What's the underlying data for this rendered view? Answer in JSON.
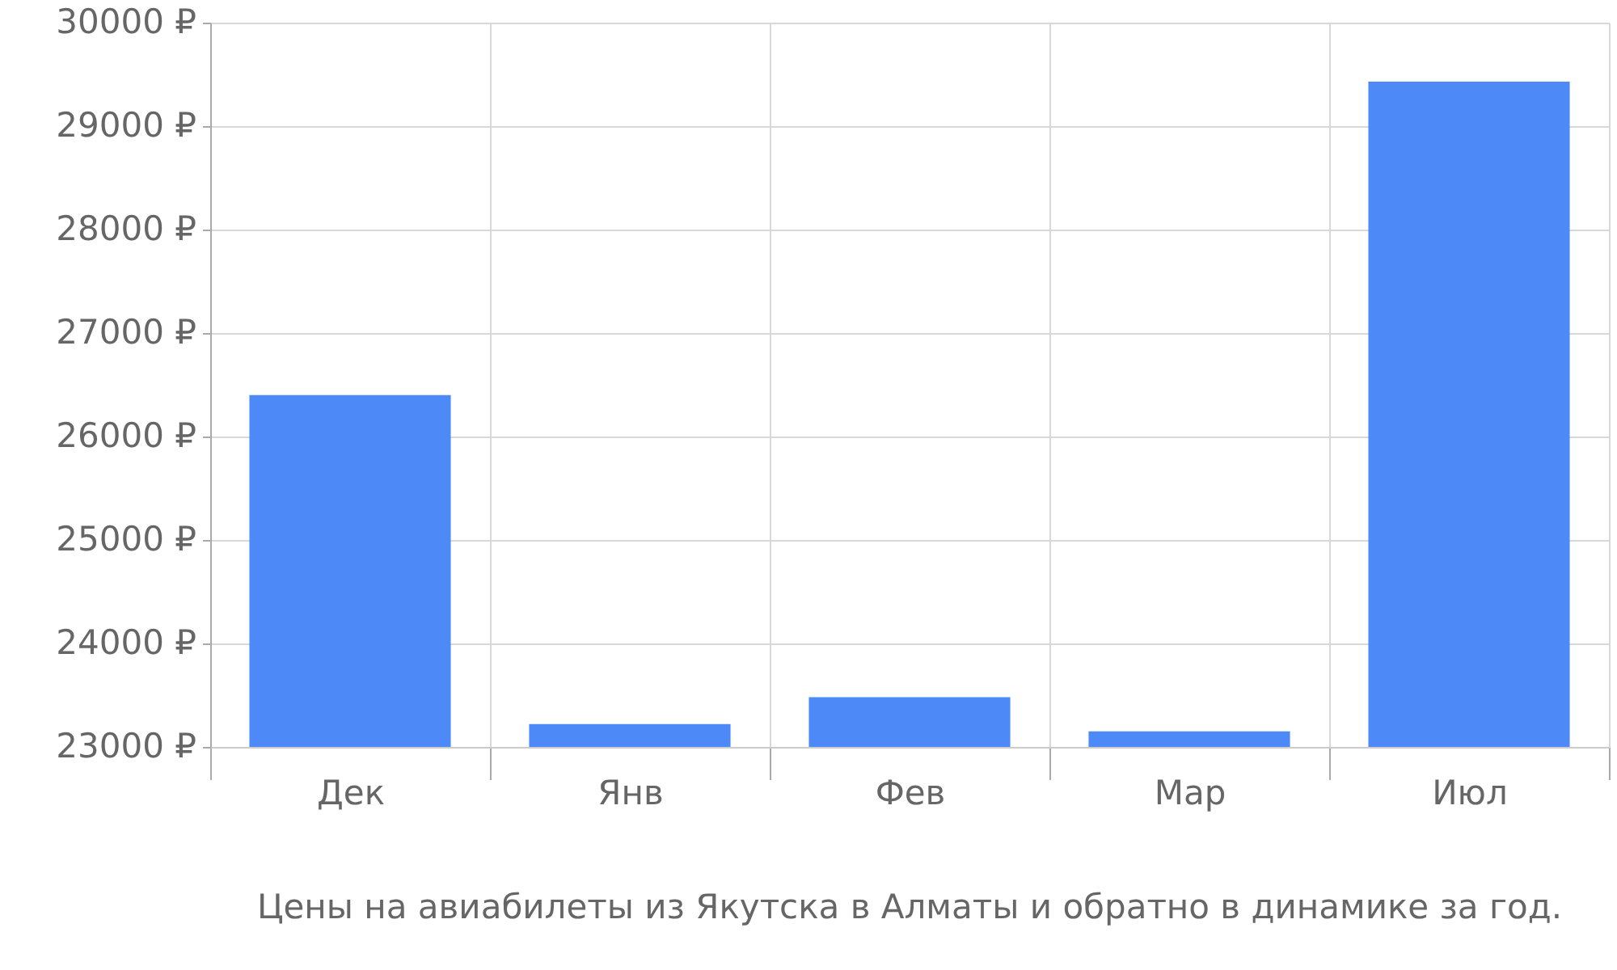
{
  "chart_data": {
    "type": "bar",
    "categories": [
      "Дек",
      "Янв",
      "Фев",
      "Мар",
      "Июл"
    ],
    "values": [
      26400,
      23220,
      23480,
      23150,
      29430
    ],
    "color": "#4d8af7",
    "ylim": [
      23000,
      30000
    ],
    "yticks": [
      {
        "value": 23000,
        "label": "23000 ₽"
      },
      {
        "value": 24000,
        "label": "24000 ₽"
      },
      {
        "value": 25000,
        "label": "25000 ₽"
      },
      {
        "value": 26000,
        "label": "26000 ₽"
      },
      {
        "value": 27000,
        "label": "27000 ₽"
      },
      {
        "value": 28000,
        "label": "28000 ₽"
      },
      {
        "value": 29000,
        "label": "29000 ₽"
      },
      {
        "value": 30000,
        "label": "30000 ₽"
      }
    ],
    "grid": true,
    "annotations": [
      "Цены на авиабилеты из Якутска в Алматы и обратно в динамике за год."
    ]
  }
}
